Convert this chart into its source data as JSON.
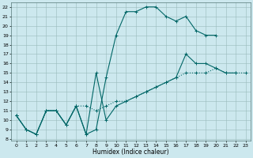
{
  "xlabel": "Humidex (Indice chaleur)",
  "bg_color": "#cce8ee",
  "grid_color": "#99bbbb",
  "line_color": "#006666",
  "xlim_min": -0.5,
  "xlim_max": 23.5,
  "ylim_min": 7.8,
  "ylim_max": 22.5,
  "xticks": [
    0,
    1,
    2,
    3,
    4,
    5,
    6,
    7,
    8,
    9,
    10,
    11,
    12,
    13,
    14,
    15,
    16,
    17,
    18,
    19,
    20,
    21,
    22,
    23
  ],
  "yticks": [
    8,
    9,
    10,
    11,
    12,
    13,
    14,
    15,
    16,
    17,
    18,
    19,
    20,
    21,
    22
  ],
  "line1_x": [
    0,
    1,
    2,
    3,
    4,
    5,
    6,
    7,
    8,
    9,
    10,
    11,
    12,
    13,
    14,
    15,
    16,
    17,
    18,
    19,
    20
  ],
  "line1_y": [
    10.5,
    9,
    8.5,
    11,
    11,
    9.5,
    11.5,
    8.5,
    9,
    14.5,
    19,
    21.5,
    21.5,
    22,
    22,
    21,
    20.5,
    21,
    19.5,
    19,
    19
  ],
  "line2_x": [
    0,
    1,
    2,
    3,
    4,
    5,
    6,
    7,
    8,
    9,
    10,
    11,
    12,
    13,
    14,
    15,
    16,
    17,
    18,
    19,
    20,
    21,
    22
  ],
  "line2_y": [
    10.5,
    9,
    8.5,
    11,
    11,
    9.5,
    11.5,
    8.5,
    15,
    10,
    11.5,
    12,
    12.5,
    13,
    13.5,
    14,
    14.5,
    17,
    16,
    16,
    15.5,
    15,
    15
  ],
  "line3_x": [
    0,
    1,
    2,
    3,
    4,
    5,
    6,
    7,
    8,
    9,
    10,
    11,
    12,
    13,
    14,
    15,
    16,
    17,
    18,
    19,
    20,
    21,
    22,
    23
  ],
  "line3_y": [
    10.5,
    9,
    8.5,
    11,
    11,
    9.5,
    11.5,
    11.5,
    11,
    11.5,
    12,
    12,
    12.5,
    13,
    13.5,
    14,
    14.5,
    15,
    15,
    15,
    15.5,
    15,
    15,
    15
  ]
}
